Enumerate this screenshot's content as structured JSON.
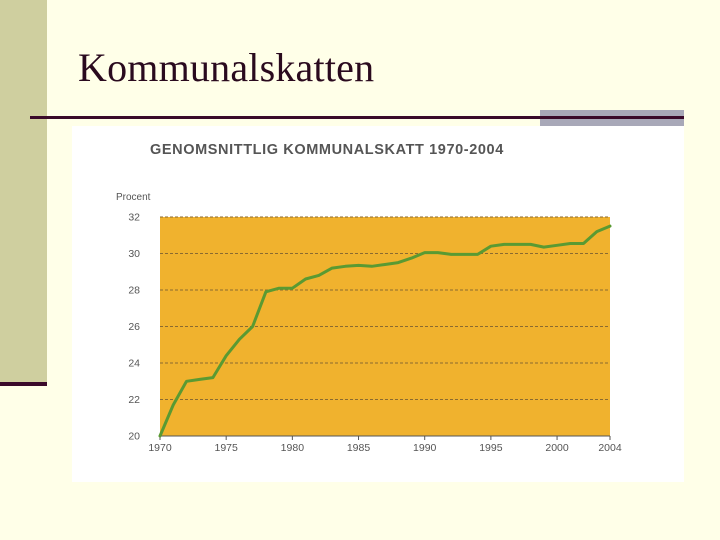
{
  "slide": {
    "title": "Kommunalskatten"
  },
  "chart_data": {
    "type": "line",
    "title": "GENOMSNITTLIG KOMMUNALSKATT 1970-2004",
    "ylabel": "Procent",
    "xlabel": "",
    "ylim": [
      20,
      32
    ],
    "xlim": [
      1970,
      2004
    ],
    "grid": true,
    "y_ticks": [
      20,
      22,
      24,
      26,
      28,
      30,
      32
    ],
    "x_ticks": [
      1970,
      1975,
      1980,
      1985,
      1990,
      1995,
      2000,
      2004
    ],
    "plot_background": "#F0B22E",
    "line_color": "#5A9A32",
    "series": [
      {
        "x": [
          1970,
          1971,
          1972,
          1973,
          1974,
          1975,
          1976,
          1977,
          1978,
          1979,
          1980,
          1981,
          1982,
          1983,
          1984,
          1985,
          1986,
          1987,
          1988,
          1989,
          1990,
          1991,
          1992,
          1993,
          1994,
          1995,
          1996,
          1997,
          1998,
          1999,
          2000,
          2001,
          2002,
          2003,
          2004
        ],
        "y": [
          20.0,
          21.7,
          23.0,
          23.1,
          23.2,
          24.4,
          25.3,
          26.0,
          27.9,
          28.1,
          28.1,
          28.6,
          28.8,
          29.2,
          29.3,
          29.35,
          29.3,
          29.4,
          29.5,
          29.75,
          30.05,
          30.05,
          29.95,
          29.95,
          29.95,
          30.4,
          30.5,
          30.5,
          30.5,
          30.35,
          30.45,
          30.55,
          30.55,
          31.2,
          31.5
        ]
      }
    ]
  }
}
